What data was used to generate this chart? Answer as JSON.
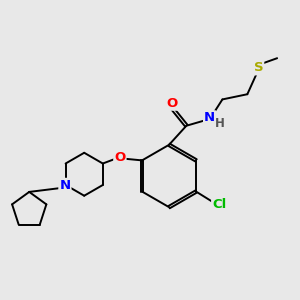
{
  "background_color": "#e8e8e8",
  "bond_color": "#000000",
  "figsize": [
    3.0,
    3.0
  ],
  "dpi": 100,
  "atom_colors": {
    "O": "#ff0000",
    "N": "#0000ff",
    "Cl": "#00bb00",
    "S": "#aaaa00",
    "C": "#000000",
    "H": "#555555"
  },
  "bond_lw": 1.4,
  "fontsize": 8.5
}
